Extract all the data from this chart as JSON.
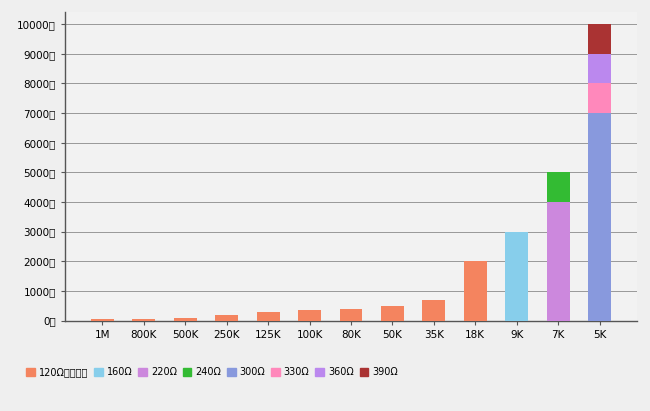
{
  "categories": [
    "1M",
    "800K",
    "500K",
    "250K",
    "125K",
    "100K",
    "80K",
    "50K",
    "35K",
    "18K",
    "9K",
    "7K",
    "5K"
  ],
  "series": {
    "120Ω匹配电阵": {
      "color": "#F4845F",
      "values": [
        40,
        60,
        100,
        200,
        300,
        350,
        400,
        500,
        700,
        2000,
        0,
        0,
        0
      ]
    },
    "160Ω": {
      "color": "#87CEEB",
      "values": [
        0,
        0,
        0,
        0,
        0,
        0,
        0,
        0,
        0,
        0,
        3000,
        0,
        0
      ]
    },
    "220Ω": {
      "color": "#CC88DD",
      "values": [
        0,
        0,
        0,
        0,
        0,
        0,
        0,
        0,
        0,
        0,
        0,
        4000,
        0
      ]
    },
    "240Ω": {
      "color": "#33BB33",
      "values": [
        0,
        0,
        0,
        0,
        0,
        0,
        0,
        0,
        0,
        0,
        0,
        1000,
        0
      ]
    },
    "300Ω": {
      "color": "#8899DD",
      "values": [
        0,
        0,
        0,
        0,
        0,
        0,
        0,
        0,
        0,
        0,
        0,
        0,
        7000
      ]
    },
    "330Ω": {
      "color": "#FF88BB",
      "values": [
        0,
        0,
        0,
        0,
        0,
        0,
        0,
        0,
        0,
        0,
        0,
        0,
        1000
      ]
    },
    "360Ω": {
      "color": "#BB88EE",
      "values": [
        0,
        0,
        0,
        0,
        0,
        0,
        0,
        0,
        0,
        0,
        0,
        0,
        1000
      ]
    },
    "390Ω": {
      "color": "#AA3333",
      "values": [
        0,
        0,
        0,
        0,
        0,
        0,
        0,
        0,
        0,
        0,
        0,
        0,
        1000
      ]
    }
  },
  "yticks": [
    0,
    1000,
    2000,
    3000,
    4000,
    5000,
    6000,
    7000,
    8000,
    9000,
    10000
  ],
  "ytick_labels": [
    "0米",
    "1000米",
    "2000米",
    "3000米",
    "4000米",
    "5000米",
    "6000米",
    "7000米",
    "8000米",
    "9000米",
    "10000米"
  ],
  "ylim": [
    0,
    10400
  ],
  "bg_color": "#EFEFEF",
  "plot_bg_color": "#F2F2F2",
  "grid_color": "#999999",
  "bar_width": 0.55,
  "legend_labels": [
    "120Ω匹配电阵",
    "160Ω",
    "220Ω",
    "240Ω",
    "300Ω",
    "330Ω",
    "360Ω",
    "390Ω"
  ],
  "legend_colors": [
    "#F4845F",
    "#87CEEB",
    "#CC88DD",
    "#33BB33",
    "#8899DD",
    "#FF88BB",
    "#BB88EE",
    "#AA3333"
  ]
}
